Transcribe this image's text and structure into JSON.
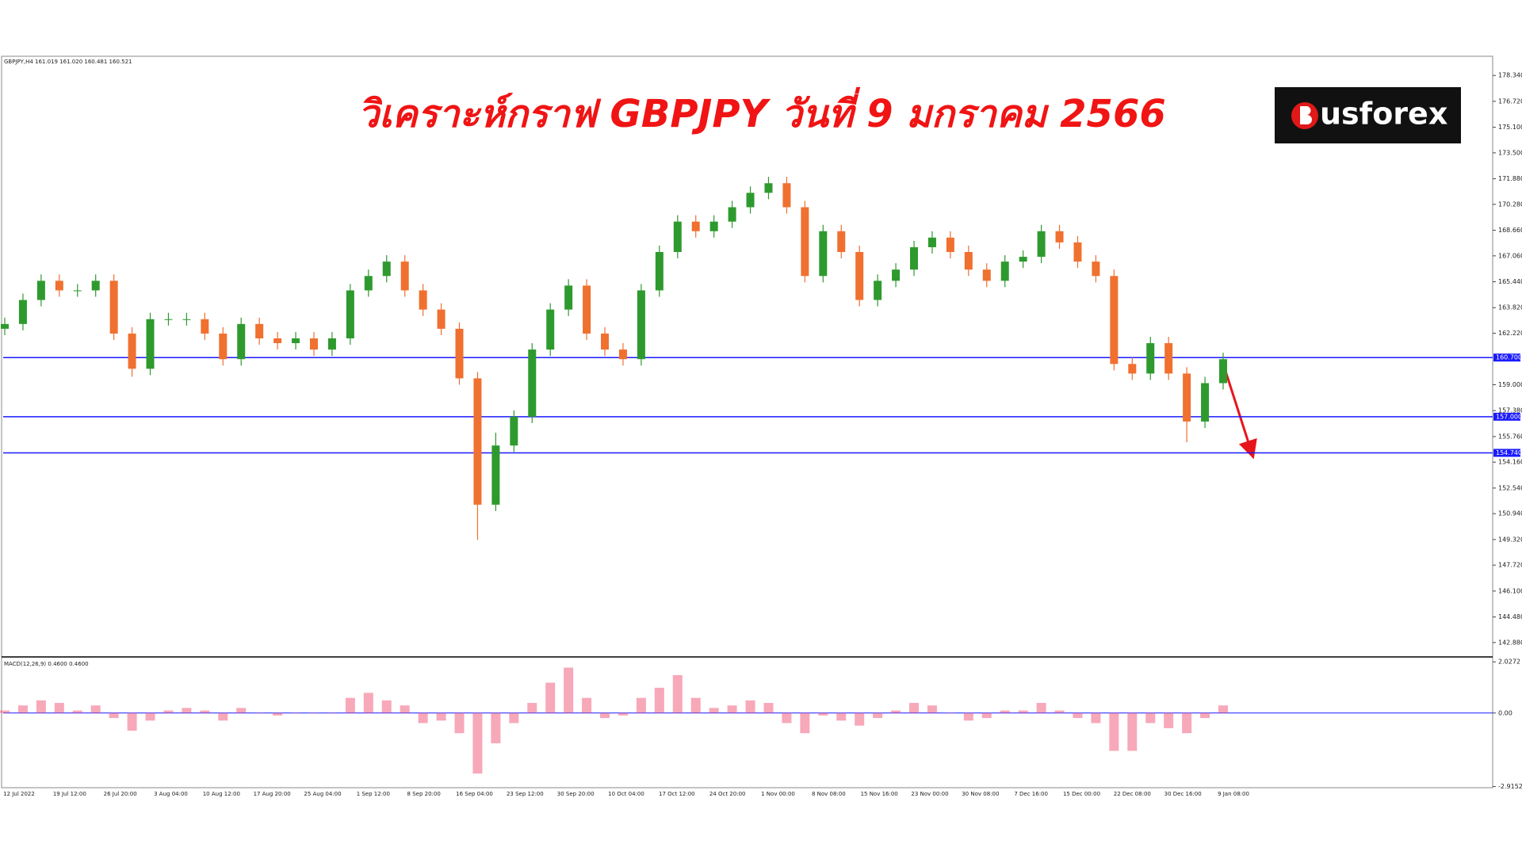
{
  "chart_data": {
    "type": "candlestick",
    "title": "วิเคราะห์กราฟ GBPJPY วันที่ 9 มกราคม 2566",
    "header": "GBPJPY,H4 161.019 161.020 160.481 160.521",
    "logo": "usforex",
    "x_labels": [
      "12 Jul 2022",
      "19 Jul 12:00",
      "26 Jul 20:00",
      "3 Aug 04:00",
      "10 Aug 12:00",
      "17 Aug 20:00",
      "25 Aug 04:00",
      "1 Sep 12:00",
      "8 Sep 20:00",
      "16 Sep 04:00",
      "23 Sep 12:00",
      "30 Sep 20:00",
      "10 Oct 04:00",
      "17 Oct 12:00",
      "24 Oct 20:00",
      "1 Nov 00:00",
      "8 Nov 08:00",
      "15 Nov 16:00",
      "23 Nov 00:00",
      "30 Nov 08:00",
      "7 Dec 16:00",
      "15 Dec 00:00",
      "22 Dec 08:00",
      "30 Dec 16:00",
      "9 Jan 08:00"
    ],
    "ylim": [
      141.98,
      179.49
    ],
    "yticks": [
      {
        "value": 178.34,
        "label": "178.340"
      },
      {
        "value": 176.72,
        "label": "176.720"
      },
      {
        "value": 175.1,
        "label": "175.100"
      },
      {
        "value": 173.5,
        "label": "173.500"
      },
      {
        "value": 171.88,
        "label": "171.880"
      },
      {
        "value": 170.28,
        "label": "170.280"
      },
      {
        "value": 168.66,
        "label": "168.660"
      },
      {
        "value": 167.06,
        "label": "167.060"
      },
      {
        "value": 165.44,
        "label": "165.440"
      },
      {
        "value": 163.82,
        "label": "163.820"
      },
      {
        "value": 162.22,
        "label": "162.220"
      },
      {
        "value": 159,
        "label": "159.000"
      },
      {
        "value": 157.38,
        "label": "157.380"
      },
      {
        "value": 155.76,
        "label": "155.760"
      },
      {
        "value": 154.16,
        "label": "154.160"
      },
      {
        "value": 152.54,
        "label": "152.540"
      },
      {
        "value": 150.94,
        "label": "150.940"
      },
      {
        "value": 149.32,
        "label": "149.320"
      },
      {
        "value": 147.72,
        "label": "147.720"
      },
      {
        "value": 146.1,
        "label": "146.100"
      },
      {
        "value": 144.48,
        "label": "144.480"
      },
      {
        "value": 142.88,
        "label": "142.880"
      }
    ],
    "up_color": "#2e9a2e",
    "down_color": "#f07030",
    "open": [
      162.5,
      162.8,
      164.3,
      165.5,
      164.9,
      164.9,
      165.5,
      162.2,
      160.0,
      163.1,
      163.1,
      163.1,
      162.2,
      160.6,
      162.8,
      161.9,
      161.6,
      161.9,
      161.2,
      161.9,
      164.9,
      165.8,
      166.7,
      164.9,
      163.7,
      162.5,
      159.4,
      151.5,
      155.2,
      157.0,
      161.2,
      163.7,
      165.2,
      162.2,
      161.2,
      160.6,
      164.9,
      167.3,
      169.2,
      168.6,
      169.2,
      170.1,
      171.0,
      171.6,
      170.1,
      165.8,
      168.6,
      167.3,
      164.3,
      165.5,
      166.2,
      167.6,
      168.2,
      167.3,
      166.2,
      165.5,
      166.7,
      167.0,
      168.6,
      167.9,
      166.7,
      165.8,
      160.3,
      159.7,
      161.6,
      159.7,
      156.7,
      159.1
    ],
    "high": [
      163.2,
      164.7,
      165.9,
      165.9,
      165.3,
      165.9,
      165.9,
      162.6,
      163.5,
      163.5,
      163.5,
      163.5,
      162.6,
      163.2,
      163.2,
      162.3,
      162.3,
      162.3,
      162.3,
      165.3,
      166.2,
      167.1,
      167.1,
      165.3,
      164.1,
      162.9,
      159.8,
      156.0,
      157.4,
      161.6,
      164.1,
      165.6,
      165.6,
      162.6,
      161.6,
      165.3,
      167.7,
      169.6,
      169.6,
      169.6,
      170.5,
      171.4,
      172.0,
      172.0,
      170.5,
      169.0,
      169.0,
      167.7,
      165.9,
      166.6,
      168.0,
      168.6,
      168.6,
      167.7,
      166.6,
      167.1,
      167.4,
      169.0,
      169.0,
      168.3,
      167.1,
      166.2,
      160.7,
      162.0,
      162.0,
      160.1,
      159.5,
      161.0
    ],
    "low": [
      162.1,
      162.4,
      163.9,
      164.5,
      164.5,
      164.5,
      161.8,
      159.5,
      159.6,
      162.7,
      162.7,
      161.8,
      160.2,
      160.2,
      161.5,
      161.2,
      161.2,
      160.8,
      160.8,
      161.5,
      164.5,
      165.4,
      164.5,
      163.3,
      162.1,
      159.0,
      149.3,
      151.1,
      154.8,
      156.6,
      160.8,
      163.3,
      161.8,
      160.8,
      160.2,
      160.2,
      164.5,
      166.9,
      168.2,
      168.2,
      168.8,
      169.7,
      170.6,
      169.7,
      165.4,
      165.4,
      166.9,
      163.9,
      163.9,
      165.1,
      165.8,
      167.2,
      166.9,
      165.8,
      165.1,
      165.1,
      166.3,
      166.6,
      167.5,
      166.3,
      165.4,
      159.9,
      159.3,
      159.3,
      159.3,
      155.4,
      156.3,
      158.7
    ],
    "close": [
      162.8,
      164.3,
      165.5,
      164.9,
      164.9,
      165.5,
      162.2,
      160.0,
      163.1,
      163.1,
      163.1,
      162.2,
      160.6,
      162.8,
      161.9,
      161.6,
      161.9,
      161.2,
      161.9,
      164.9,
      165.8,
      166.7,
      164.9,
      163.7,
      162.5,
      159.4,
      151.5,
      155.2,
      157.0,
      161.2,
      163.7,
      165.2,
      162.2,
      161.2,
      160.6,
      164.9,
      167.3,
      169.2,
      168.6,
      169.2,
      170.1,
      171.0,
      171.6,
      170.1,
      165.8,
      168.6,
      167.3,
      164.3,
      165.5,
      166.2,
      167.6,
      168.2,
      167.3,
      166.2,
      165.5,
      166.7,
      167.0,
      168.6,
      167.9,
      166.7,
      165.8,
      160.3,
      159.7,
      161.6,
      159.7,
      156.7,
      159.1,
      160.6
    ],
    "hlines": {
      "values": [
        160.7,
        157.0,
        154.74
      ],
      "value_labels": [
        "160.700",
        "157.000",
        "154.740"
      ],
      "color": "#1a1aff"
    },
    "macd": {
      "label": "MACD(12,26,9) 0.4600 0.4600",
      "color": "#f06080",
      "zero_color": "#1a1aff",
      "ylim": [
        -2.96,
        2.16
      ],
      "yticks": [
        2.0272,
        {
          "value": 0,
          "label": "0.00"
        },
        -2.9152
      ],
      "values": [
        0.1,
        0.3,
        0.5,
        0.4,
        0.1,
        0.3,
        -0.2,
        -0.7,
        -0.3,
        0.1,
        0.2,
        0.1,
        -0.3,
        0.2,
        0.0,
        -0.1,
        0.0,
        0.0,
        0.0,
        0.6,
        0.8,
        0.5,
        0.3,
        -0.4,
        -0.3,
        -0.8,
        -2.4,
        -1.2,
        -0.4,
        0.4,
        1.2,
        1.8,
        0.6,
        -0.2,
        -0.1,
        0.6,
        1.0,
        1.5,
        0.6,
        0.2,
        0.3,
        0.5,
        0.4,
        -0.4,
        -0.8,
        -0.1,
        -0.3,
        -0.5,
        -0.2,
        0.1,
        0.4,
        0.3,
        0.0,
        -0.3,
        -0.2,
        0.1,
        0.1,
        0.4,
        0.1,
        -0.2,
        -0.4,
        -1.5,
        -1.5,
        -0.4,
        -0.6,
        -0.8,
        -0.2,
        0.3
      ]
    }
  }
}
